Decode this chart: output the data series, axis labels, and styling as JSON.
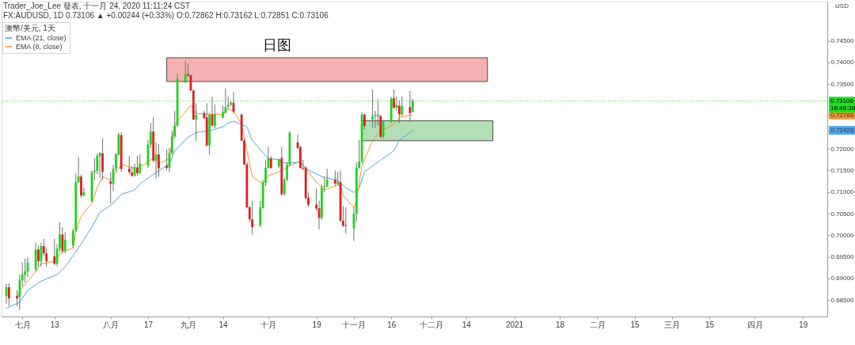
{
  "chart_data": {
    "type": "candlestick",
    "title": "日图",
    "ylabel": "USD",
    "legend_title": "澳幣/美元, 1天",
    "legend": "top left",
    "annotations": [
      "Trader_Joe_Lee 發表, 十一月 24, 2020 11:11:24 CST",
      "FX:AUDUSD, 1D 0.73106 ▲ +0.00244 (+0.33%) O:0.72862 H:0.73162 L:0.72851 C:0.73106",
      "16:48:38"
    ],
    "x": [
      "2020-06-25",
      "2020-06-26",
      "2020-06-29",
      "2020-06-30",
      "2020-07-01",
      "2020-07-02",
      "2020-07-03",
      "2020-07-06",
      "2020-07-07",
      "2020-07-08",
      "2020-07-09",
      "2020-07-10",
      "2020-07-13",
      "2020-07-14",
      "2020-07-15",
      "2020-07-16",
      "2020-07-17",
      "2020-07-20",
      "2020-07-21",
      "2020-07-22",
      "2020-07-23",
      "2020-07-24",
      "2020-07-27",
      "2020-07-28",
      "2020-07-29",
      "2020-07-30",
      "2020-07-31",
      "2020-08-03",
      "2020-08-04",
      "2020-08-05",
      "2020-08-06",
      "2020-08-07",
      "2020-08-10",
      "2020-08-11",
      "2020-08-12",
      "2020-08-13",
      "2020-08-14",
      "2020-08-17",
      "2020-08-18",
      "2020-08-19",
      "2020-08-20",
      "2020-08-21",
      "2020-08-24",
      "2020-08-25",
      "2020-08-26",
      "2020-08-27",
      "2020-08-28",
      "2020-08-31",
      "2020-09-01",
      "2020-09-02",
      "2020-09-03",
      "2020-09-04",
      "2020-09-07",
      "2020-09-08",
      "2020-09-09",
      "2020-09-10",
      "2020-09-11",
      "2020-09-14",
      "2020-09-15",
      "2020-09-16",
      "2020-09-17",
      "2020-09-18",
      "2020-09-21",
      "2020-09-22",
      "2020-09-23",
      "2020-09-24",
      "2020-09-25",
      "2020-09-28",
      "2020-09-29",
      "2020-09-30",
      "2020-10-01",
      "2020-10-02",
      "2020-10-05",
      "2020-10-06",
      "2020-10-07",
      "2020-10-08",
      "2020-10-09",
      "2020-10-12",
      "2020-10-13",
      "2020-10-14",
      "2020-10-15",
      "2020-10-16",
      "2020-10-19",
      "2020-10-20",
      "2020-10-21",
      "2020-10-22",
      "2020-10-23",
      "2020-10-26",
      "2020-10-27",
      "2020-10-28",
      "2020-10-29",
      "2020-10-30",
      "2020-11-02",
      "2020-11-03",
      "2020-11-04",
      "2020-11-05",
      "2020-11-06",
      "2020-11-09",
      "2020-11-10",
      "2020-11-11",
      "2020-11-12",
      "2020-11-13",
      "2020-11-16",
      "2020-11-17",
      "2020-11-18",
      "2020-11-19",
      "2020-11-20",
      "2020-11-23",
      "2020-11-24"
    ],
    "ohlc": [
      [
        0.686,
        0.6888,
        0.6842,
        0.688
      ],
      [
        0.688,
        0.6889,
        0.6836,
        0.6854
      ],
      [
        0.6859,
        0.6873,
        0.6836,
        0.6854
      ],
      [
        0.6857,
        0.6909,
        0.6827,
        0.6897
      ],
      [
        0.6896,
        0.6937,
        0.6882,
        0.6909
      ],
      [
        0.6908,
        0.6946,
        0.6891,
        0.6917
      ],
      [
        0.6916,
        0.6949,
        0.6903,
        0.6937
      ],
      [
        0.6921,
        0.6983,
        0.6916,
        0.6967
      ],
      [
        0.6967,
        0.6976,
        0.6928,
        0.694
      ],
      [
        0.694,
        0.6983,
        0.6928,
        0.6975
      ],
      [
        0.6975,
        0.6992,
        0.6952,
        0.6958
      ],
      [
        0.6958,
        0.697,
        0.6928,
        0.694
      ],
      [
        0.6951,
        0.6992,
        0.6931,
        0.6934
      ],
      [
        0.6934,
        0.6979,
        0.6928,
        0.6969
      ],
      [
        0.6969,
        0.7031,
        0.6961,
        0.7002
      ],
      [
        0.7002,
        0.7019,
        0.6958,
        0.6964
      ],
      [
        0.6964,
        0.7007,
        0.6958,
        0.6989
      ],
      [
        0.6976,
        0.7016,
        0.697,
        0.7011
      ],
      [
        0.7011,
        0.7144,
        0.7007,
        0.7123
      ],
      [
        0.7123,
        0.7181,
        0.712,
        0.7136
      ],
      [
        0.7136,
        0.7141,
        0.7086,
        0.7092
      ],
      [
        0.7092,
        0.7111,
        0.7089,
        0.71
      ],
      [
        0.7079,
        0.715,
        0.7077,
        0.7146
      ],
      [
        0.7146,
        0.7178,
        0.7129,
        0.715
      ],
      [
        0.7149,
        0.719,
        0.7141,
        0.7184
      ],
      [
        0.7183,
        0.7193,
        0.7132,
        0.719
      ],
      [
        0.719,
        0.7224,
        0.7129,
        0.7147
      ],
      [
        0.7125,
        0.7147,
        0.7074,
        0.7119
      ],
      [
        0.7119,
        0.7163,
        0.7102,
        0.7154
      ],
      [
        0.7154,
        0.719,
        0.7147,
        0.7188
      ],
      [
        0.7187,
        0.7238,
        0.7184,
        0.7233
      ],
      [
        0.7232,
        0.7238,
        0.7147,
        0.7154
      ],
      [
        0.7154,
        0.7184,
        0.7141,
        0.7146
      ],
      [
        0.7145,
        0.716,
        0.7135,
        0.7138
      ],
      [
        0.7138,
        0.7166,
        0.7135,
        0.7156
      ],
      [
        0.7156,
        0.7184,
        0.7138,
        0.7144
      ],
      [
        0.7144,
        0.7187,
        0.7141,
        0.7166
      ],
      [
        0.7161,
        0.7221,
        0.7156,
        0.721
      ],
      [
        0.721,
        0.726,
        0.7202,
        0.724
      ],
      [
        0.724,
        0.7273,
        0.7169,
        0.7173
      ],
      [
        0.7173,
        0.7215,
        0.7132,
        0.7187
      ],
      [
        0.7187,
        0.7211,
        0.7135,
        0.7155
      ],
      [
        0.7161,
        0.7199,
        0.715,
        0.7156
      ],
      [
        0.7156,
        0.7202,
        0.7147,
        0.719
      ],
      [
        0.719,
        0.7242,
        0.7187,
        0.7229
      ],
      [
        0.7229,
        0.7288,
        0.7224,
        0.7254
      ],
      [
        0.7254,
        0.7373,
        0.7251,
        0.7362
      ],
      [
        0.7354,
        0.7404,
        0.7352,
        0.7373
      ],
      [
        0.7373,
        0.7398,
        0.7367,
        0.7369
      ],
      [
        0.737,
        0.7373,
        0.7334,
        0.7335
      ],
      [
        0.7335,
        0.7337,
        0.7266,
        0.7268
      ],
      [
        0.7268,
        0.7306,
        0.7218,
        0.7279
      ],
      [
        0.7283,
        0.7288,
        0.727,
        0.7271
      ],
      [
        0.7273,
        0.7306,
        0.7205,
        0.7208
      ],
      [
        0.7208,
        0.7282,
        0.7187,
        0.7279
      ],
      [
        0.7279,
        0.7321,
        0.7251,
        0.7254
      ],
      [
        0.7254,
        0.7303,
        0.7248,
        0.7279
      ],
      [
        0.7273,
        0.73,
        0.727,
        0.7285
      ],
      [
        0.7284,
        0.734,
        0.7282,
        0.7297
      ],
      [
        0.7298,
        0.7321,
        0.7291,
        0.7302
      ],
      [
        0.7302,
        0.7312,
        0.73,
        0.7307
      ],
      [
        0.7307,
        0.7331,
        0.7282,
        0.7286
      ],
      [
        0.7279,
        0.7282,
        0.7218,
        0.7219
      ],
      [
        0.7219,
        0.7224,
        0.7163,
        0.7164
      ],
      [
        0.7164,
        0.7169,
        0.7062,
        0.7065
      ],
      [
        0.7065,
        0.7068,
        0.7031,
        0.7037
      ],
      [
        0.7037,
        0.708,
        0.7001,
        0.7019
      ],
      [
        0.7023,
        0.708,
        0.7019,
        0.7065
      ],
      [
        0.7063,
        0.7129,
        0.7062,
        0.7123
      ],
      [
        0.7122,
        0.7175,
        0.7114,
        0.7156
      ],
      [
        0.7156,
        0.7205,
        0.7154,
        0.7178
      ],
      [
        0.7178,
        0.7184,
        0.7154,
        0.7156
      ],
      [
        0.716,
        0.7178,
        0.7156,
        0.7175
      ],
      [
        0.7179,
        0.7204,
        0.7092,
        0.7095
      ],
      [
        0.7095,
        0.7132,
        0.7092,
        0.7129
      ],
      [
        0.7129,
        0.7169,
        0.7126,
        0.7163
      ],
      [
        0.7163,
        0.724,
        0.716,
        0.7238
      ],
      [
        0.7215,
        0.7233,
        0.7199,
        0.7202
      ],
      [
        0.7204,
        0.7208,
        0.7154,
        0.7156
      ],
      [
        0.7156,
        0.7175,
        0.715,
        0.7154
      ],
      [
        0.7156,
        0.716,
        0.7083,
        0.7086
      ],
      [
        0.7087,
        0.7099,
        0.7065,
        0.7071
      ],
      [
        0.7071,
        0.7108,
        0.7056,
        0.7062
      ],
      [
        0.7063,
        0.708,
        0.7014,
        0.704
      ],
      [
        0.704,
        0.7117,
        0.7037,
        0.7111
      ],
      [
        0.7111,
        0.7135,
        0.7099,
        0.7114
      ],
      [
        0.7113,
        0.7154,
        0.7111,
        0.7129
      ],
      [
        0.7129,
        0.715,
        0.7114,
        0.712
      ],
      [
        0.7118,
        0.7147,
        0.7116,
        0.7124
      ],
      [
        0.7123,
        0.715,
        0.7031,
        0.7034
      ],
      [
        0.7034,
        0.7068,
        0.7019,
        0.7022
      ],
      [
        0.7024,
        0.7065,
        0.7004,
        0.7022
      ],
      [
        0.7016,
        0.7065,
        0.6987,
        0.705
      ],
      [
        0.7049,
        0.7169,
        0.7031,
        0.7156
      ],
      [
        0.7156,
        0.7221,
        0.7154,
        0.7171
      ],
      [
        0.7171,
        0.7285,
        0.7166,
        0.7279
      ],
      [
        0.7279,
        0.7282,
        0.7245,
        0.7253
      ],
      [
        0.7268,
        0.7337,
        0.7248,
        0.7276
      ],
      [
        0.7276,
        0.7288,
        0.7248,
        0.7279
      ],
      [
        0.7276,
        0.7315,
        0.7254,
        0.7279
      ],
      [
        0.7276,
        0.7279,
        0.7224,
        0.7228
      ],
      [
        0.7228,
        0.7266,
        0.7224,
        0.7262
      ],
      [
        0.7262,
        0.732,
        0.726,
        0.7317
      ],
      [
        0.7317,
        0.7338,
        0.7293,
        0.7295
      ],
      [
        0.7295,
        0.7321,
        0.7288,
        0.7301
      ],
      [
        0.73,
        0.7313,
        0.726,
        0.728
      ],
      [
        0.728,
        0.7321,
        0.7276,
        0.73
      ],
      [
        0.7297,
        0.7334,
        0.7262,
        0.7283
      ],
      [
        0.7286,
        0.7316,
        0.7285,
        0.7311
      ]
    ],
    "colors": [
      "#1ed41e",
      "#dc1f1f",
      "#dc1f1f",
      "#1ed41e",
      "#1ed41e",
      "#1ed41e",
      "#1ed41e",
      "#1ed41e",
      "#dc1f1f",
      "#1ed41e",
      "#dc1f1f",
      "#dc1f1f",
      "#dc1f1f",
      "#1ed41e",
      "#1ed41e",
      "#dc1f1f",
      "#1ed41e",
      "#1ed41e",
      "#1ed41e",
      "#1ed41e",
      "#dc1f1f",
      "#1ed41e",
      "#1ed41e",
      "#1ed41e",
      "#1ed41e",
      "#1ed41e",
      "#dc1f1f",
      "#dc1f1f",
      "#1ed41e",
      "#1ed41e",
      "#1ed41e",
      "#dc1f1f",
      "#dc1f1f",
      "#dc1f1f",
      "#1ed41e",
      "#dc1f1f",
      "#1ed41e",
      "#1ed41e",
      "#1ed41e",
      "#dc1f1f",
      "#1ed41e",
      "#dc1f1f",
      "#dc1f1f",
      "#1ed41e",
      "#1ed41e",
      "#1ed41e",
      "#1ed41e",
      "#1ed41e",
      "#dc1f1f",
      "#dc1f1f",
      "#dc1f1f",
      "#1ed41e",
      "#dc1f1f",
      "#dc1f1f",
      "#1ed41e",
      "#dc1f1f",
      "#1ed41e",
      "#1ed41e",
      "#1ed41e",
      "#1ed41e",
      "#1ed41e",
      "#dc1f1f",
      "#dc1f1f",
      "#dc1f1f",
      "#dc1f1f",
      "#dc1f1f",
      "#dc1f1f",
      "#1ed41e",
      "#1ed41e",
      "#1ed41e",
      "#1ed41e",
      "#dc1f1f",
      "#1ed41e",
      "#dc1f1f",
      "#1ed41e",
      "#1ed41e",
      "#1ed41e",
      "#dc1f1f",
      "#dc1f1f",
      "#dc1f1f",
      "#dc1f1f",
      "#dc1f1f",
      "#dc1f1f",
      "#dc1f1f",
      "#1ed41e",
      "#1ed41e",
      "#1ed41e",
      "#dc1f1f",
      "#1ed41e",
      "#dc1f1f",
      "#dc1f1f",
      "#dc1f1f",
      "#1ed41e",
      "#1ed41e",
      "#1ed41e",
      "#1ed41e",
      "#dc1f1f",
      "#1ed41e",
      "#1ed41e",
      "#1ed41e",
      "#dc1f1f",
      "#1ed41e",
      "#1ed41e",
      "#dc1f1f",
      "#1ed41e",
      "#dc1f1f",
      "#1ed41e",
      "#dc1f1f",
      "#1ed41e"
    ],
    "series": [
      {
        "type": "line",
        "color": "#f5b1b1",
        "x": [
          "2020-08-24",
          "2020-12-22"
        ],
        "values": [
          null,
          null
        ],
        "lower": [
          0.7356,
          0.7356
        ],
        "upper": [
          0.7411,
          0.7411
        ]
      },
      {
        "type": "line",
        "color": "#b3dfb6",
        "x": [
          "2020-11-05",
          "2020-12-24"
        ],
        "values": [
          null,
          null
        ],
        "lower": [
          0.7219,
          0.7219
        ],
        "upper": [
          0.7265,
          0.7265
        ]
      },
      {
        "type": "line",
        "name": "EMA (21, close)",
        "color": "#4ea3e6",
        "x": [
          "2020-06-25",
          "2020-06-30",
          "2020-07-03",
          "2020-07-08",
          "2020-07-14",
          "2020-07-17",
          "2020-07-22",
          "2020-07-27",
          "2020-07-30",
          "2020-08-04",
          "2020-08-07",
          "2020-08-12",
          "2020-08-14",
          "2020-08-19",
          "2020-08-25",
          "2020-08-27",
          "2020-09-01",
          "2020-09-04",
          "2020-09-09",
          "2020-09-14",
          "2020-09-16",
          "2020-09-18",
          "2020-09-23",
          "2020-09-25",
          "2020-09-29",
          "2020-10-01",
          "2020-10-05",
          "2020-10-07",
          "2020-10-13",
          "2020-10-15",
          "2020-10-21",
          "2020-10-27",
          "2020-10-30",
          "2020-11-02",
          "2020-11-04",
          "2020-11-06",
          "2020-11-12",
          "2020-11-17",
          "2020-11-19",
          "2020-11-24"
        ],
        "values": [
          0.6831,
          0.6845,
          0.6873,
          0.6894,
          0.6909,
          0.6927,
          0.6971,
          0.7019,
          0.7053,
          0.7074,
          0.7095,
          0.7105,
          0.7119,
          0.7141,
          0.7165,
          0.7196,
          0.7227,
          0.7238,
          0.7242,
          0.7251,
          0.726,
          0.7264,
          0.7251,
          0.722,
          0.7191,
          0.7178,
          0.7175,
          0.7167,
          0.7169,
          0.7154,
          0.7136,
          0.7127,
          0.711,
          0.7099,
          0.711,
          0.7147,
          0.7174,
          0.7196,
          0.722,
          0.72428
        ]
      },
      {
        "type": "line",
        "name": "EMA (8, close)",
        "color": "#f5922f",
        "x": [
          "2020-06-29",
          "2020-06-30",
          "2020-07-06",
          "2020-07-08",
          "2020-07-13",
          "2020-07-16",
          "2020-07-20",
          "2020-07-21",
          "2020-07-23",
          "2020-07-27",
          "2020-07-29",
          "2020-07-31",
          "2020-08-03",
          "2020-08-06",
          "2020-08-07",
          "2020-08-11",
          "2020-08-14",
          "2020-08-19",
          "2020-08-21",
          "2020-08-25",
          "2020-08-27",
          "2020-09-02",
          "2020-09-04",
          "2020-09-14",
          "2020-09-16",
          "2020-09-18",
          "2020-09-21",
          "2020-09-23",
          "2020-09-25",
          "2020-09-29",
          "2020-10-01",
          "2020-10-05",
          "2020-10-09",
          "2020-10-13",
          "2020-10-15",
          "2020-10-19",
          "2020-10-22",
          "2020-10-26",
          "2020-10-28",
          "2020-10-29",
          "2020-11-02",
          "2020-11-03",
          "2020-11-05",
          "2020-11-09",
          "2020-11-12",
          "2020-11-17",
          "2020-11-19",
          "2020-11-24"
        ],
        "values": [
          0.6855,
          0.6872,
          0.6916,
          0.6934,
          0.694,
          0.6962,
          0.6971,
          0.7008,
          0.7044,
          0.7074,
          0.711,
          0.7136,
          0.7128,
          0.7154,
          0.7165,
          0.7156,
          0.7158,
          0.7178,
          0.7165,
          0.7178,
          0.7257,
          0.7301,
          0.7282,
          0.7279,
          0.7292,
          0.7288,
          0.7257,
          0.7196,
          0.7136,
          0.7119,
          0.7138,
          0.7147,
          0.716,
          0.7172,
          0.7154,
          0.7123,
          0.7105,
          0.7114,
          0.7117,
          0.7092,
          0.7064,
          0.7081,
          0.716,
          0.722,
          0.7242,
          0.7257,
          0.7273,
          0.72788
        ]
      }
    ],
    "ref_lines": [
      {
        "axis": "y",
        "value": 0.73106,
        "label": "0.73106",
        "color": "#22dd22",
        "line_style": "dotted"
      }
    ],
    "xlim": [
      "2020-06-24T17:00",
      "2021-04-26T15:00"
    ],
    "xticks": [
      {
        "value": "2020-07-01",
        "label": "七月"
      },
      {
        "value": "2020-07-13",
        "label": "13"
      },
      {
        "value": "2020-08-03",
        "label": "八月"
      },
      {
        "value": "2020-08-17",
        "label": "17"
      },
      {
        "value": "2020-09-01",
        "label": "九月"
      },
      {
        "value": "2020-09-14",
        "label": "14"
      },
      {
        "value": "2020-10-01",
        "label": "十月"
      },
      {
        "value": "2020-10-19",
        "label": "19"
      },
      {
        "value": "2020-11-02",
        "label": "十一月"
      },
      {
        "value": "2020-11-16",
        "label": "16"
      },
      {
        "value": "2020-12-01",
        "label": "十二月"
      },
      {
        "value": "2020-12-14",
        "label": "14"
      },
      {
        "value": "2021-01-01",
        "label": "2021"
      },
      {
        "value": "2021-01-18",
        "label": "18"
      },
      {
        "value": "2021-02-01",
        "label": "二月"
      },
      {
        "value": "2021-02-15",
        "label": "15"
      },
      {
        "value": "2021-03-01",
        "label": "三月"
      },
      {
        "value": "2021-03-15",
        "label": "15"
      },
      {
        "value": "2021-04-01",
        "label": "四月"
      },
      {
        "value": "2021-04-19",
        "label": "19"
      }
    ],
    "ylim": [
      0.6812,
      0.7541
    ],
    "yticks": [
      {
        "value": 0.685,
        "label": "0.68500"
      },
      {
        "value": 0.69,
        "label": "0.69000"
      },
      {
        "value": 0.695,
        "label": "0.69500"
      },
      {
        "value": 0.7,
        "label": "0.70000"
      },
      {
        "value": 0.705,
        "label": "0.70500"
      },
      {
        "value": 0.71,
        "label": "0.71000"
      },
      {
        "value": 0.715,
        "label": "0.71500"
      },
      {
        "value": 0.72,
        "label": "0.72000"
      },
      {
        "value": 0.72428,
        "label": "0.72428"
      },
      {
        "value": 0.72788,
        "label": "0.72788"
      },
      {
        "value": 0.735,
        "label": "0.73500"
      },
      {
        "value": 0.74,
        "label": "0.74000"
      },
      {
        "value": 0.745,
        "label": "0.74500"
      }
    ]
  }
}
